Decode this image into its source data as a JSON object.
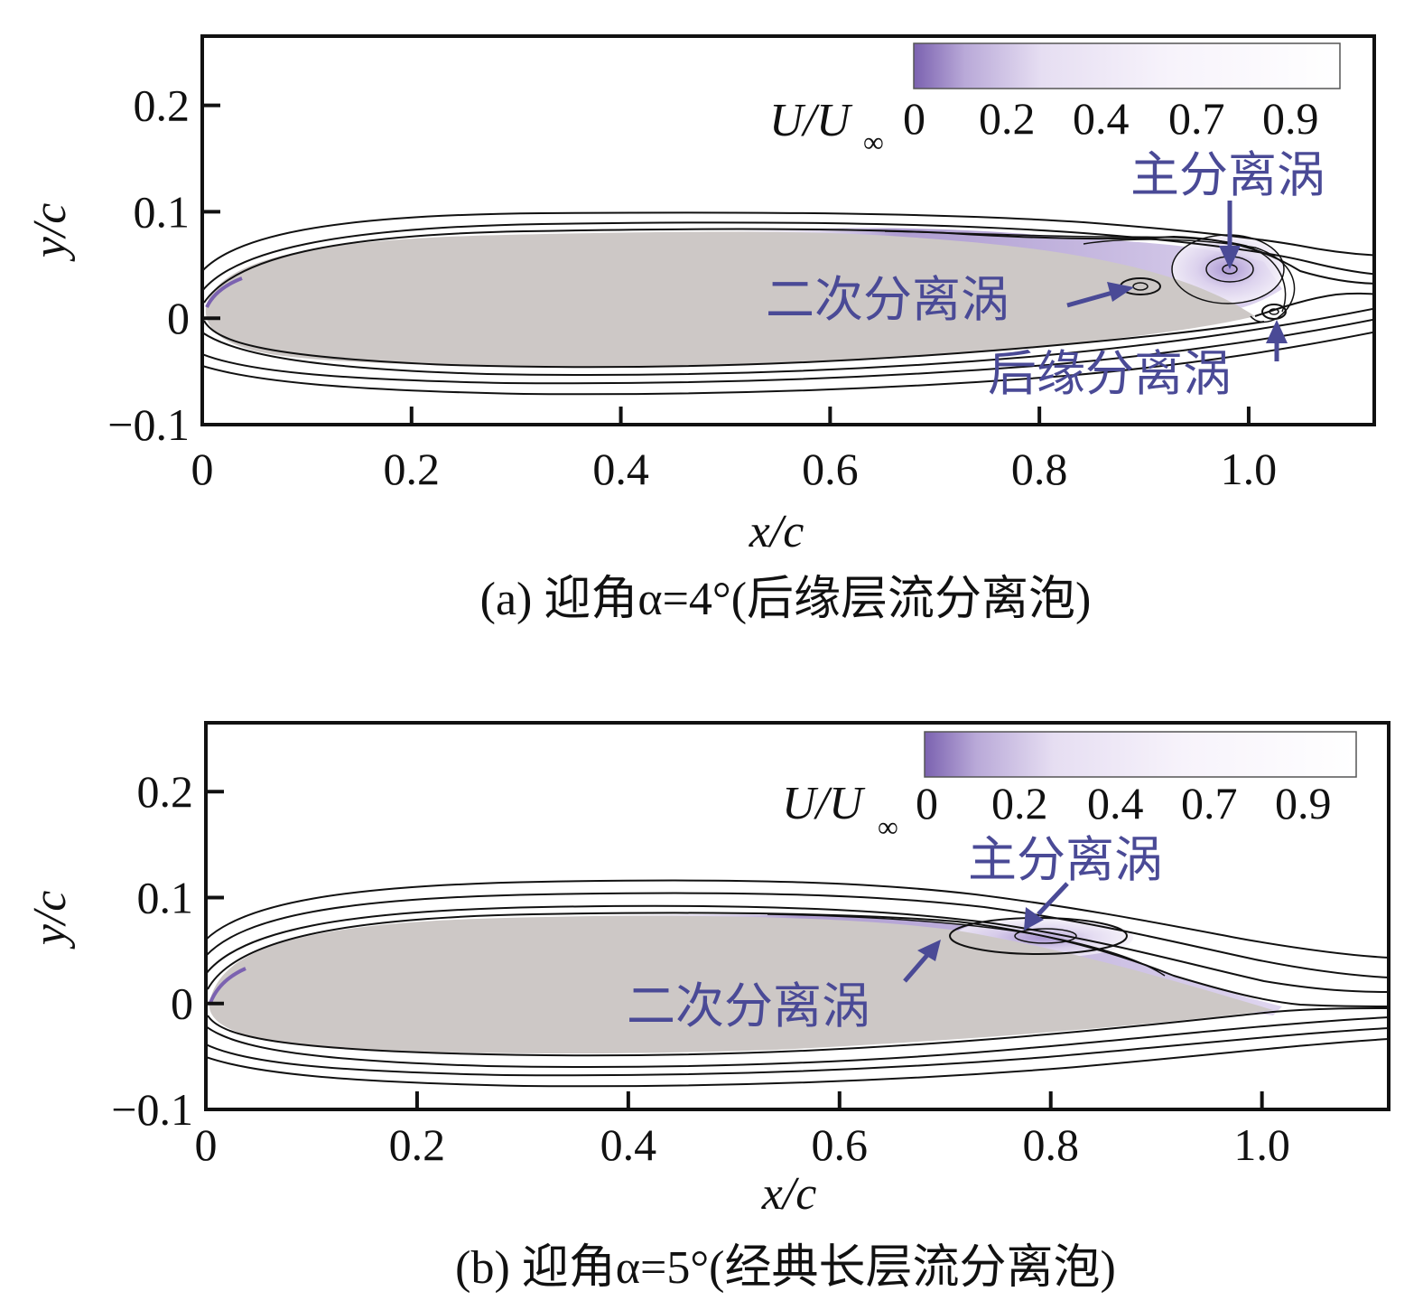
{
  "colors": {
    "airfoil": "#cdc8c6",
    "accent": "#4a4a96",
    "low_speed": "#7b62b0",
    "frame": "#111111"
  },
  "chart_data": [
    {
      "type": "contour",
      "caption": "(a) 迎角α=4°(后缘层流分离泡)",
      "xlabel": "x/c",
      "ylabel": "y/c",
      "xlim": [
        0,
        1.12
      ],
      "ylim": [
        -0.1,
        0.265
      ],
      "x_ticks": [
        0,
        0.2,
        0.4,
        0.6,
        0.8,
        1.0
      ],
      "x_tick_labels": [
        "0",
        "0.2",
        "0.4",
        "0.6",
        "0.8",
        "1.0"
      ],
      "y_ticks": [
        -0.1,
        0,
        0.1,
        0.2
      ],
      "y_tick_labels": [
        "−0.1",
        "0",
        "0.1",
        "0.2"
      ],
      "legend": {
        "title": "U/U",
        "subscript": "∞",
        "levels": [
          "0",
          "0.2",
          "0.4",
          "0.7",
          "0.9"
        ]
      },
      "annotations": [
        {
          "text": "主分离涡",
          "target": [
            0.975,
            0.046
          ]
        },
        {
          "text": "二次分离涡",
          "target": [
            0.885,
            0.032
          ]
        },
        {
          "text": "后缘分离涡",
          "target": [
            1.02,
            0.007
          ]
        }
      ],
      "vortices": [
        {
          "name": "主分离涡",
          "x": 0.975,
          "y": 0.046
        },
        {
          "name": "二次分离涡",
          "x": 0.885,
          "y": 0.032
        },
        {
          "name": "后缘分离涡",
          "x": 1.02,
          "y": 0.007
        }
      ]
    },
    {
      "type": "contour",
      "caption": "(b) 迎角α=5°(经典长层流分离泡)",
      "xlabel": "x/c",
      "ylabel": "y/c",
      "xlim": [
        0,
        1.12
      ],
      "ylim": [
        -0.1,
        0.265
      ],
      "x_ticks": [
        0,
        0.2,
        0.4,
        0.6,
        0.8,
        1.0
      ],
      "x_tick_labels": [
        "0",
        "0.2",
        "0.4",
        "0.6",
        "0.8",
        "1.0"
      ],
      "y_ticks": [
        -0.1,
        0,
        0.1,
        0.2
      ],
      "y_tick_labels": [
        "−0.1",
        "0",
        "0.1",
        "0.2"
      ],
      "legend": {
        "title": "U/U",
        "subscript": "∞",
        "levels": [
          "0",
          "0.2",
          "0.4",
          "0.7",
          "0.9"
        ]
      },
      "annotations": [
        {
          "text": "主分离涡",
          "target": [
            0.775,
            0.07
          ]
        },
        {
          "text": "二次分离涡",
          "target": [
            0.69,
            0.062
          ]
        }
      ],
      "vortices": [
        {
          "name": "主分离涡",
          "x": 0.785,
          "y": 0.068
        }
      ]
    }
  ]
}
